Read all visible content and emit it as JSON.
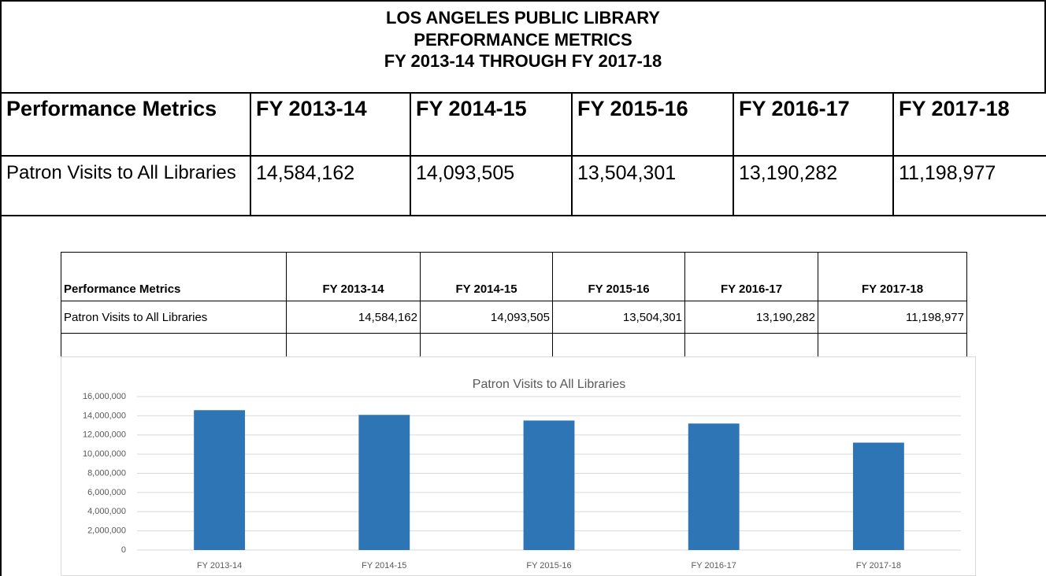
{
  "header": {
    "lines": [
      "LOS ANGELES PUBLIC LIBRARY",
      "PERFORMANCE METRICS",
      "FY 2013-14 THROUGH FY 2017-18"
    ]
  },
  "table": {
    "columns": [
      "Performance Metrics",
      "FY 2013-14",
      "FY 2014-15",
      "FY 2015-16",
      "FY 2016-17",
      "FY 2017-18"
    ],
    "rows": [
      [
        "Patron Visits to All Libraries",
        "14,584,162",
        "14,093,505",
        "13,504,301",
        "13,190,282",
        "11,198,977"
      ]
    ]
  },
  "inner_table": {
    "columns": [
      "Performance Metrics",
      "FY 2013-14",
      "FY 2014-15",
      "FY 2015-16",
      "FY 2016-17",
      "FY 2017-18"
    ],
    "rows": [
      [
        "Patron Visits to All Libraries",
        "14,584,162",
        "14,093,505",
        "13,504,301",
        "13,190,282",
        "11,198,977"
      ]
    ]
  },
  "chart_data": {
    "type": "bar",
    "title": "Patron Visits to All Libraries",
    "categories": [
      "FY 2013-14",
      "FY 2014-15",
      "FY 2015-16",
      "FY 2016-17",
      "FY 2017-18"
    ],
    "values": [
      14584162,
      14093505,
      13504301,
      13190282,
      11198977
    ],
    "color": "#2e75b6",
    "ylim": [
      0,
      16000000
    ],
    "yticks": [
      0,
      {
        "value": 2000000,
        "label": "2,000,000"
      },
      {
        "value": 4000000,
        "label": "4,000,000"
      },
      {
        "value": 6000000,
        "label": "6,000,000"
      },
      {
        "value": 8000000,
        "label": "8,000,000"
      },
      {
        "value": 10000000,
        "label": "10,000,000"
      },
      {
        "value": 12000000,
        "label": "12,000,000"
      },
      {
        "value": 14000000,
        "label": "14,000,000"
      },
      {
        "value": 16000000,
        "label": "16,000,000"
      }
    ],
    "grid": true
  }
}
